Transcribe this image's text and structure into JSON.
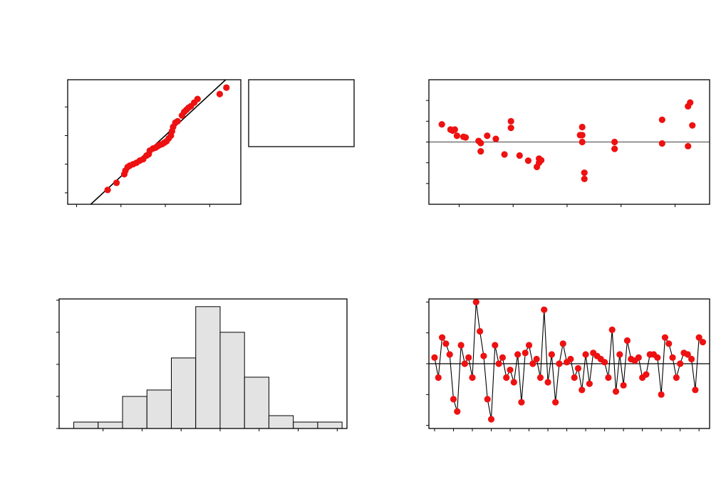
{
  "colors": {
    "point": "#ee1111",
    "bar_fill": "#e3e3e3",
    "axis": "#000000",
    "line": "#000000"
  },
  "chart_data": [
    {
      "type": "scatter",
      "title": "",
      "xlabel": "",
      "ylabel": "",
      "xlim": [
        -4.4,
        3.4
      ],
      "ylim": [
        -4.8,
        3.9
      ],
      "x_ticks": [
        -4,
        -2,
        0,
        2,
        4
      ],
      "y_ticks": [
        -4,
        -2,
        0,
        2,
        4
      ],
      "fit_line": [
        [
          -3.5,
          -5.0
        ],
        [
          3.0,
          4.3
        ]
      ],
      "points": [
        [
          -2.6,
          -3.8
        ],
        [
          -2.2,
          -3.3
        ],
        [
          -1.85,
          -2.7
        ],
        [
          -1.8,
          -2.45
        ],
        [
          -1.7,
          -2.2
        ],
        [
          -1.6,
          -2.1
        ],
        [
          -1.45,
          -2.0
        ],
        [
          -1.3,
          -1.9
        ],
        [
          -1.15,
          -1.75
        ],
        [
          -1.0,
          -1.65
        ],
        [
          -0.85,
          -1.4
        ],
        [
          -0.75,
          -1.3
        ],
        [
          -0.7,
          -1.05
        ],
        [
          -0.55,
          -0.9
        ],
        [
          -0.45,
          -0.85
        ],
        [
          -0.35,
          -0.75
        ],
        [
          -0.25,
          -0.65
        ],
        [
          -0.15,
          -0.6
        ],
        [
          -0.05,
          -0.5
        ],
        [
          0.05,
          -0.4
        ],
        [
          0.15,
          -0.2
        ],
        [
          0.25,
          0.0
        ],
        [
          0.3,
          0.3
        ],
        [
          0.35,
          0.6
        ],
        [
          0.45,
          0.9
        ],
        [
          0.55,
          1.0
        ],
        [
          0.75,
          1.4
        ],
        [
          0.85,
          1.65
        ],
        [
          0.95,
          1.8
        ],
        [
          1.05,
          1.95
        ],
        [
          1.15,
          2.05
        ],
        [
          1.3,
          2.3
        ],
        [
          1.45,
          2.55
        ],
        [
          2.45,
          2.9
        ],
        [
          2.75,
          3.35
        ]
      ]
    },
    {
      "type": "scatter",
      "title": "",
      "xlabel": "",
      "ylabel": "",
      "xlim": [
        -14,
        116
      ],
      "ylim": [
        -3.0,
        3.0
      ],
      "x_ticks": [
        0,
        25,
        50,
        75,
        100
      ],
      "y_ticks": [
        -2,
        -1,
        0,
        1,
        2
      ],
      "reference_line": 0,
      "points": [
        [
          -8,
          0.85
        ],
        [
          -4,
          0.6
        ],
        [
          -3,
          0.55
        ],
        [
          -2,
          0.6
        ],
        [
          -1,
          0.3
        ],
        [
          2,
          0.25
        ],
        [
          3,
          0.22
        ],
        [
          9,
          0.05
        ],
        [
          10,
          -0.05
        ],
        [
          10,
          -0.45
        ],
        [
          13,
          0.3
        ],
        [
          17,
          0.15
        ],
        [
          21,
          -0.6
        ],
        [
          24,
          1.0
        ],
        [
          24,
          0.68
        ],
        [
          28,
          -0.65
        ],
        [
          32,
          -0.9
        ],
        [
          36,
          -1.2
        ],
        [
          37,
          -1.0
        ],
        [
          37,
          -0.8
        ],
        [
          38,
          -0.88
        ],
        [
          56,
          0.33
        ],
        [
          57,
          0.0
        ],
        [
          57,
          0.72
        ],
        [
          57,
          0.33
        ],
        [
          58,
          -1.48
        ],
        [
          58,
          -1.78
        ],
        [
          72,
          0.0
        ],
        [
          72,
          -0.33
        ],
        [
          94,
          1.07
        ],
        [
          94,
          -0.07
        ],
        [
          106,
          -0.2
        ],
        [
          106,
          1.72
        ],
        [
          107,
          1.9
        ],
        [
          108,
          0.8
        ]
      ]
    },
    {
      "type": "bar",
      "title": "",
      "xlabel": "",
      "ylabel": "",
      "xlim": [
        -3.3,
        2.6
      ],
      "ylim": [
        0,
        20.2
      ],
      "x_ticks": [
        -2.4,
        -1.6,
        -0.8,
        0.0,
        0.8,
        1.6,
        2.4
      ],
      "y_ticks": [
        0,
        5,
        10,
        15,
        20
      ],
      "bin_edges": [
        -3.0,
        -2.5,
        -2.0,
        -1.5,
        -1.0,
        -0.5,
        0.0,
        0.5,
        1.0,
        1.5,
        2.0,
        2.5
      ],
      "values": [
        1,
        1,
        5,
        6,
        11,
        19,
        15,
        8,
        2,
        1,
        1
      ]
    },
    {
      "type": "line",
      "title": "",
      "xlabel": "",
      "ylabel": "",
      "xlim": [
        -0.5,
        73.8
      ],
      "ylim": [
        -2.1,
        2.1
      ],
      "x_ticks": [
        1,
        6,
        11,
        16,
        21,
        26,
        31,
        36,
        41,
        46,
        51,
        56,
        61,
        66,
        71
      ],
      "y_ticks": [
        -2,
        -1,
        0,
        1,
        2
      ],
      "reference_line": 0,
      "values": [
        0.2,
        -0.45,
        0.85,
        0.65,
        0.3,
        -1.15,
        -1.55,
        0.6,
        0.0,
        0.2,
        -0.45,
        2.0,
        1.05,
        0.25,
        -1.15,
        -1.8,
        0.6,
        0.0,
        0.2,
        -0.45,
        -0.2,
        -0.6,
        0.3,
        -1.25,
        0.35,
        0.6,
        0.0,
        0.15,
        -0.45,
        1.75,
        -0.6,
        0.3,
        -1.25,
        0.0,
        0.65,
        0.05,
        0.15,
        -0.45,
        -0.15,
        -0.85,
        0.3,
        -0.65,
        0.35,
        0.25,
        0.15,
        0.05,
        -0.45,
        1.1,
        -0.9,
        0.3,
        -0.7,
        0.75,
        0.15,
        0.1,
        0.2,
        -0.45,
        -0.35,
        0.3,
        0.3,
        0.2,
        -1.0,
        0.85,
        0.65,
        0.2,
        -0.45,
        0.0,
        0.35,
        0.3,
        0.15,
        -0.85,
        0.85,
        0.7
      ]
    }
  ]
}
